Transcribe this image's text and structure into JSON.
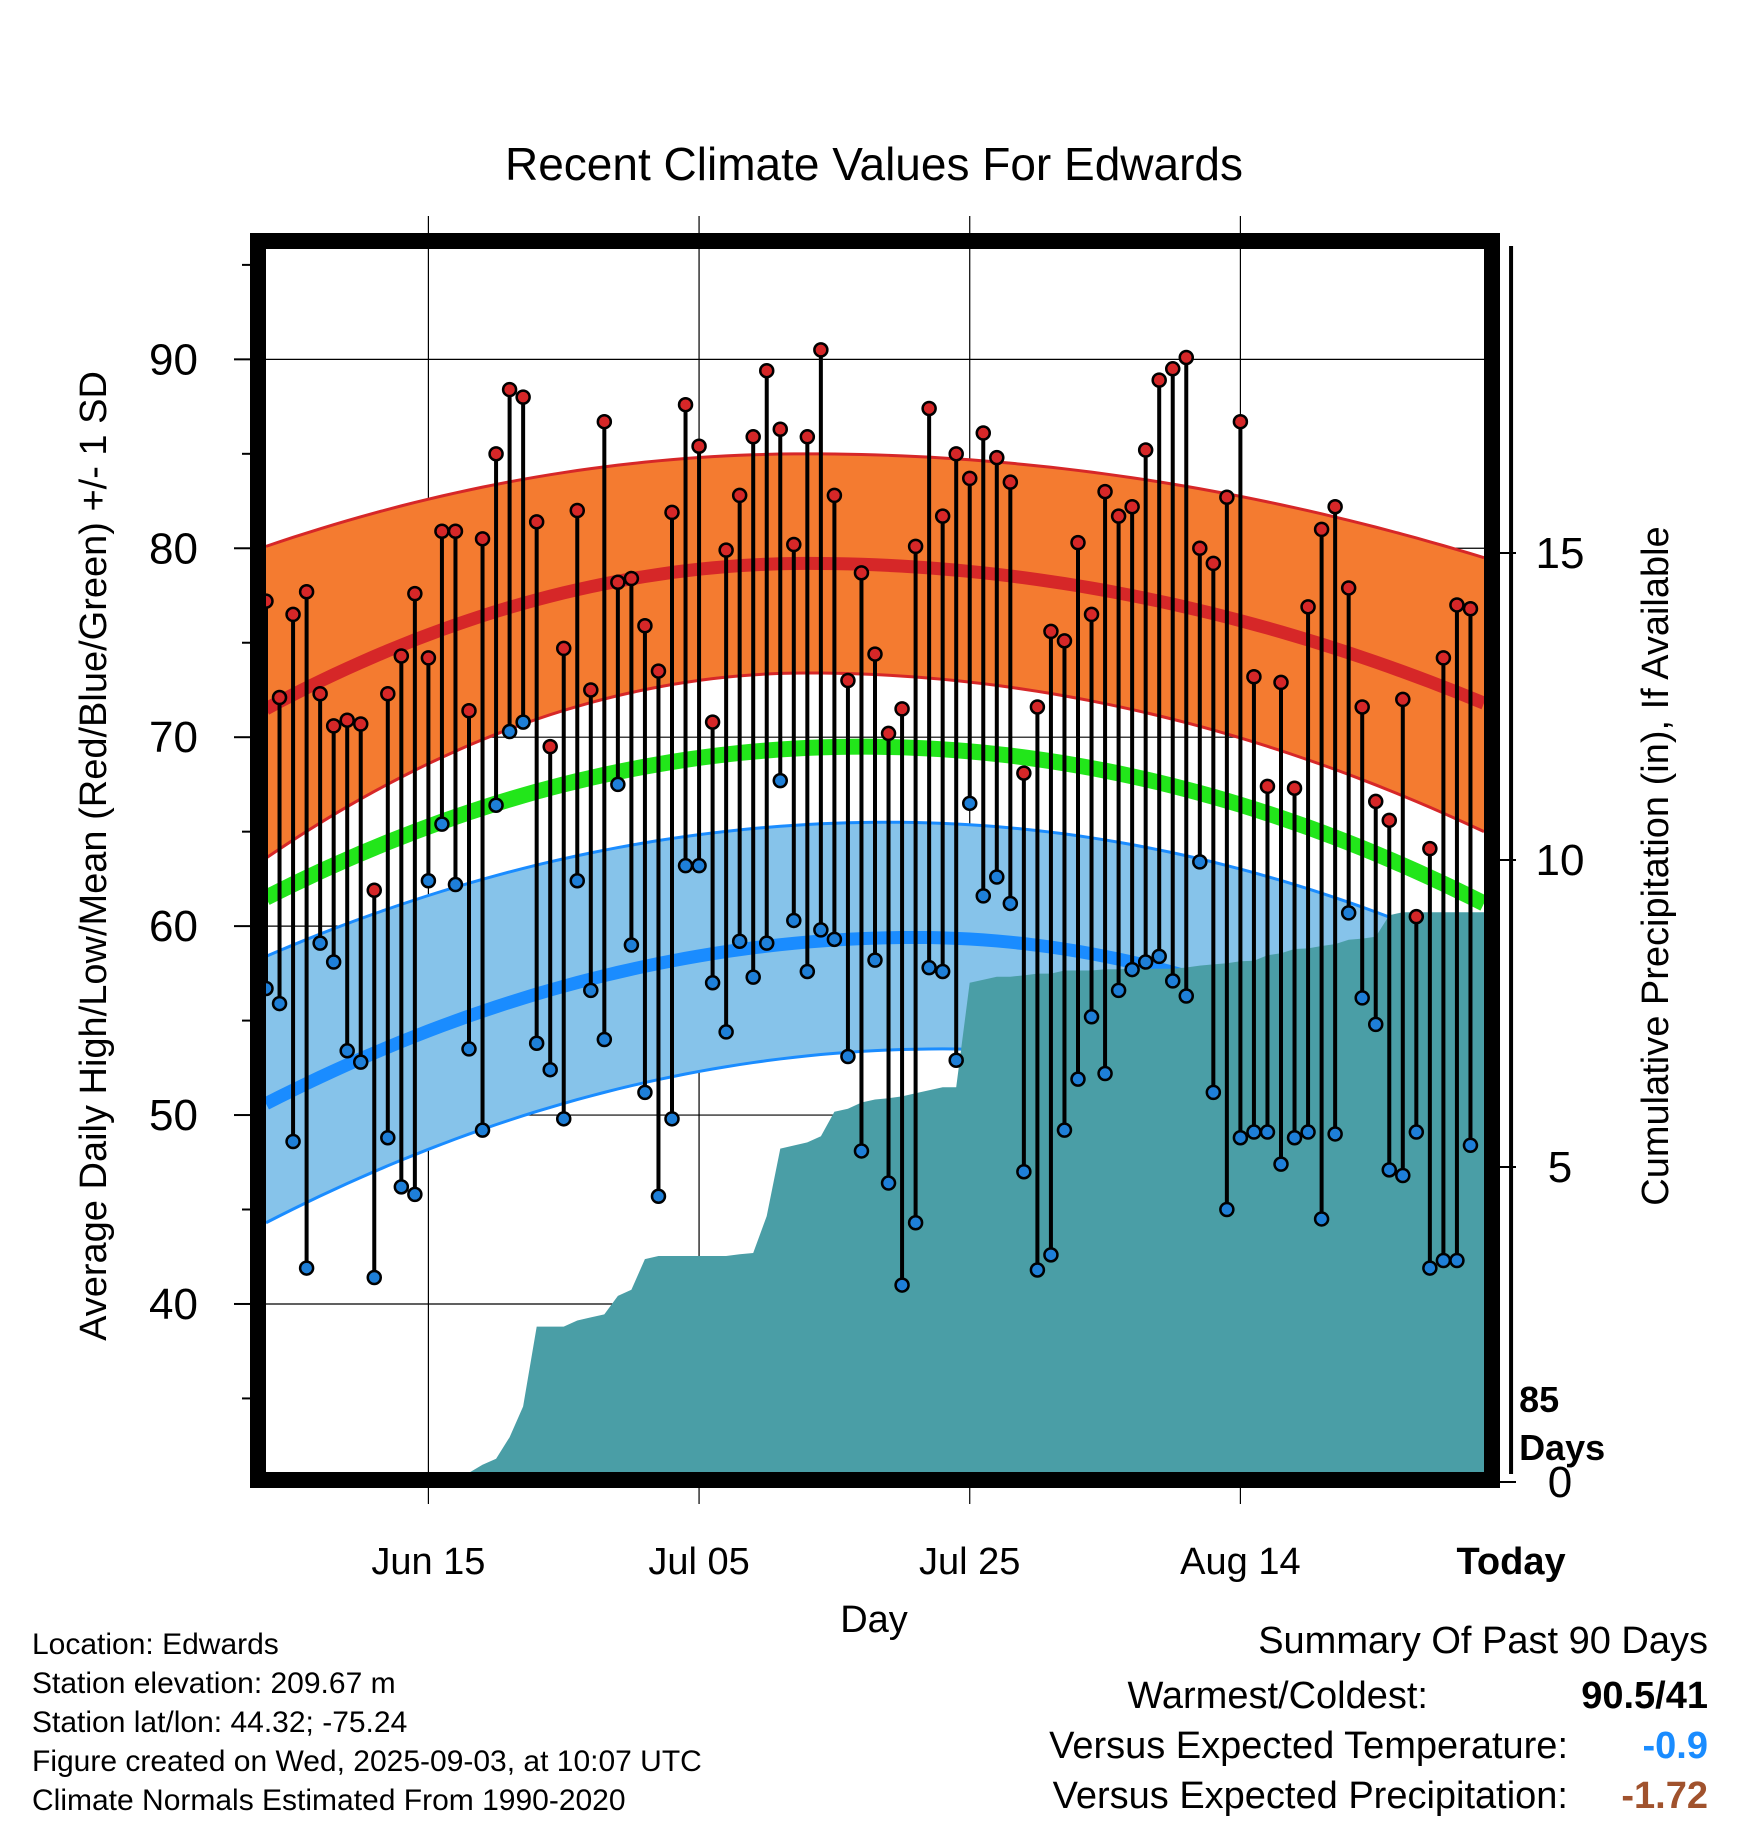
{
  "chart_data": {
    "type": "line",
    "title": "Recent Climate Values For Edwards",
    "xlabel": "Day",
    "ylabel": "Average Daily High/Low/Mean (Red/Blue/Green) +/- 1 SD",
    "y2label": "Cumulative Precipitation (in), If Available",
    "ylim": [
      31,
      96
    ],
    "y2lim": [
      0,
      20
    ],
    "x_tick_labels": [
      "Jun 15",
      "Jul 05",
      "Jul 25",
      "Aug 14",
      "Today"
    ],
    "x_tick_day_index": [
      12,
      32,
      52,
      72,
      92
    ],
    "y_ticks": [
      40,
      50,
      60,
      70,
      80,
      90
    ],
    "y2_ticks": [
      0,
      5,
      10,
      15
    ],
    "today_annotation": [
      "85",
      "Days"
    ],
    "n_days": 91,
    "normals": {
      "high_mean": {
        "start": 71.5,
        "peak": 79.2,
        "end": 71.8,
        "peak_day": 40
      },
      "high_upper": {
        "start": 80.1,
        "peak": 85.0,
        "end": 79.5,
        "peak_day": 40
      },
      "high_lower": {
        "start": 63.6,
        "peak": 73.4,
        "end": 65.0,
        "peak_day": 40
      },
      "mean_line": {
        "start": 61.5,
        "peak": 69.5,
        "end": 61.2,
        "peak_day": 44
      },
      "low_mean": {
        "start": 50.6,
        "peak": 59.4,
        "end": 50.4,
        "peak_day": 48
      },
      "low_upper": {
        "start": 58.4,
        "peak": 65.5,
        "end": 58.4,
        "peak_day": 46
      },
      "low_lower": {
        "start": 44.3,
        "peak": 53.5,
        "end": 43.4,
        "peak_day": 50
      }
    },
    "series": [
      {
        "name": "High",
        "values": [
          77.2,
          72.1,
          76.5,
          77.7,
          72.3,
          70.6,
          70.9,
          70.7,
          61.9,
          72.3,
          74.3,
          77.6,
          74.2,
          80.9,
          80.9,
          71.4,
          80.5,
          85.0,
          88.4,
          88.0,
          81.4,
          69.5,
          74.7,
          82.0,
          72.5,
          86.7,
          78.2,
          78.4,
          75.9,
          73.5,
          81.9,
          87.6,
          85.4,
          70.8,
          79.9,
          82.8,
          85.9,
          89.4,
          86.3,
          80.2,
          85.9,
          90.5,
          82.8,
          73.0,
          78.7,
          74.4,
          70.2,
          71.5,
          80.1,
          87.4,
          81.7,
          85.0,
          83.7,
          86.1,
          84.8,
          83.5,
          68.1,
          71.6,
          75.6,
          75.1,
          80.3,
          76.5,
          83.0,
          81.7,
          82.2,
          85.2,
          88.9,
          89.5,
          90.1,
          80.0,
          79.2,
          82.7,
          86.7,
          73.2,
          67.4,
          72.9,
          67.3,
          76.9,
          81.0,
          82.2,
          77.9,
          71.6,
          66.6,
          65.6,
          72.0,
          60.5,
          64.1,
          74.2,
          77.0,
          76.8
        ]
      },
      {
        "name": "Low",
        "values": [
          56.7,
          55.9,
          48.6,
          41.9,
          59.1,
          58.1,
          53.4,
          52.8,
          41.4,
          48.8,
          46.2,
          45.8,
          62.4,
          65.4,
          62.2,
          53.5,
          49.2,
          66.4,
          70.3,
          70.8,
          53.8,
          52.4,
          49.8,
          62.4,
          56.6,
          54.0,
          67.5,
          59.0,
          51.2,
          45.7,
          49.8,
          63.2,
          63.2,
          57.0,
          54.4,
          59.2,
          57.3,
          59.1,
          67.7,
          60.3,
          57.6,
          59.8,
          59.3,
          53.1,
          48.1,
          58.2,
          46.4,
          41.0,
          44.3,
          57.8,
          57.6,
          52.9,
          66.5,
          61.6,
          62.6,
          61.2,
          47.0,
          41.8,
          42.6,
          49.2,
          51.9,
          55.2,
          52.2,
          56.6,
          57.7,
          58.1,
          58.4,
          57.1,
          56.3,
          63.4,
          51.2,
          45.0,
          48.8,
          49.1,
          49.1,
          47.4,
          48.8,
          49.1,
          44.5,
          49.0,
          60.7,
          56.2,
          54.8,
          47.1,
          46.8,
          49.1,
          41.9,
          42.3,
          42.3,
          48.4
        ]
      },
      {
        "name": "Cumulative Precipitation",
        "values": [
          0,
          0,
          0,
          0,
          0,
          0,
          0,
          0,
          0,
          0,
          0,
          0,
          0,
          0,
          0,
          0.02,
          0.15,
          0.25,
          0.6,
          1.1,
          2.4,
          2.4,
          2.4,
          2.5,
          2.55,
          2.6,
          2.9,
          3.0,
          3.5,
          3.55,
          3.55,
          3.55,
          3.55,
          3.55,
          3.55,
          3.58,
          3.6,
          4.2,
          5.3,
          5.35,
          5.4,
          5.5,
          5.9,
          5.95,
          6.05,
          6.1,
          6.12,
          6.15,
          6.2,
          6.25,
          6.3,
          6.3,
          8.0,
          8.05,
          8.1,
          8.1,
          8.12,
          8.15,
          8.15,
          8.2,
          8.2,
          8.2,
          8.22,
          8.22,
          8.23,
          8.23,
          8.23,
          8.23,
          8.25,
          8.28,
          8.3,
          8.32,
          8.35,
          8.36,
          8.45,
          8.48,
          8.55,
          8.56,
          8.6,
          8.63,
          8.7,
          8.72,
          8.75,
          9.1,
          9.15,
          9.15,
          9.15,
          9.15,
          9.15,
          9.15,
          9.15
        ]
      }
    ]
  },
  "footer": {
    "location": "Location: Edwards",
    "elevation": "Station elevation: 209.67 m",
    "latlon": "Station lat/lon: 44.32; -75.24",
    "created": "Figure created on Wed, 2025-09-03, at 10:07 UTC",
    "normals": "Climate Normals Estimated From 1990-2020"
  },
  "summary": {
    "title": "Summary Of Past 90 Days",
    "warmest_coldest_label": "Warmest/Coldest:",
    "warmest_coldest_value": "90.5/41",
    "temp_label": "Versus Expected Temperature:",
    "temp_value": "-0.9",
    "precip_label": "Versus Expected Precipitation:",
    "precip_value": "-1.72"
  },
  "colors": {
    "high_band": "#f47b30",
    "high_line": "#d62728",
    "low_band": "#86c3ea",
    "low_line": "#1a8cff",
    "mean_line": "#22e61a",
    "precip_fill": "#4a9ea6",
    "temp_anomaly": "#1a8cff",
    "precip_anomaly": "#a0522d",
    "high_dot": "#d62728",
    "low_dot": "#1e7fd8"
  }
}
